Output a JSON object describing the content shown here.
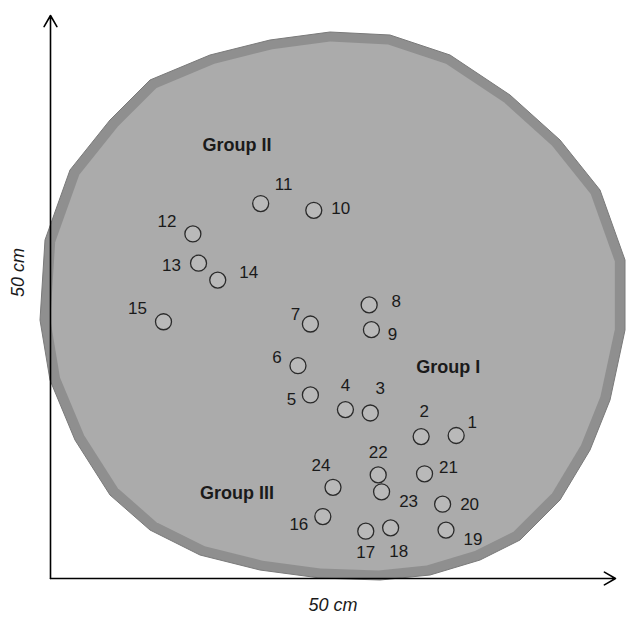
{
  "chart_data": {
    "type": "scatter",
    "xlabel": "50 cm",
    "ylabel": "50 cm",
    "xlim": [
      0,
      50
    ],
    "ylim": [
      0,
      50
    ],
    "xticks": [],
    "yticks": [],
    "tick_labels": false,
    "marker": "circle",
    "labels": [
      "1",
      "2",
      "3",
      "4",
      "5",
      "6",
      "7",
      "8",
      "9",
      "10",
      "11",
      "12",
      "13",
      "14",
      "15",
      "16",
      "17",
      "18",
      "19",
      "20",
      "21",
      "22",
      "23",
      "24"
    ],
    "x": [
      35.9,
      32.8,
      28.3,
      26.1,
      23.0,
      21.9,
      23.0,
      28.2,
      28.4,
      23.3,
      18.6,
      12.6,
      13.1,
      14.8,
      10.0,
      24.1,
      27.9,
      30.1,
      35.0,
      34.7,
      33.1,
      29.0,
      29.3,
      25.0
    ],
    "y": [
      12.7,
      12.6,
      14.7,
      15.0,
      16.3,
      18.9,
      22.6,
      24.3,
      22.1,
      32.7,
      33.3,
      30.6,
      28.0,
      26.5,
      22.8,
      5.5,
      4.2,
      4.5,
      4.3,
      6.6,
      9.3,
      9.2,
      7.7,
      8.1
    ],
    "annotations": [
      {
        "text": "Group II",
        "x": 16.5,
        "y": 38.5
      },
      {
        "text": "Group I",
        "x": 35.2,
        "y": 18.8
      },
      {
        "text": "Group III",
        "x": 16.5,
        "y": 7.6
      }
    ]
  }
}
